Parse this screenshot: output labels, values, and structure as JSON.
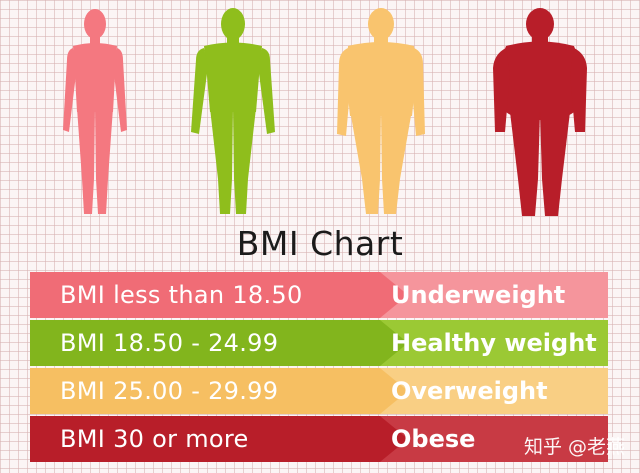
{
  "title": "BMI Chart",
  "figures": [
    {
      "name": "underweight-figure",
      "color": "#f47880"
    },
    {
      "name": "healthy-figure",
      "color": "#8fbe1c"
    },
    {
      "name": "overweight-figure",
      "color": "#f9c46e"
    },
    {
      "name": "obese-figure",
      "color": "#b81e29"
    }
  ],
  "rows": [
    {
      "range": "BMI less than 18.50",
      "category": "Underweight",
      "color_dark": "#f06c76",
      "color_light": "#f5959c"
    },
    {
      "range": "BMI 18.50 - 24.99",
      "category": "Healthy weight",
      "color_dark": "#82b51d",
      "color_light": "#9bc934"
    },
    {
      "range": "BMI 25.00 - 29.99",
      "category": "Overweight",
      "color_dark": "#f6bf62",
      "color_light": "#f9cf84"
    },
    {
      "range": "BMI 30 or more",
      "category": "Obese",
      "color_dark": "#b81e29",
      "color_light": "#c83a44"
    }
  ],
  "watermark": "知乎 @老燕"
}
